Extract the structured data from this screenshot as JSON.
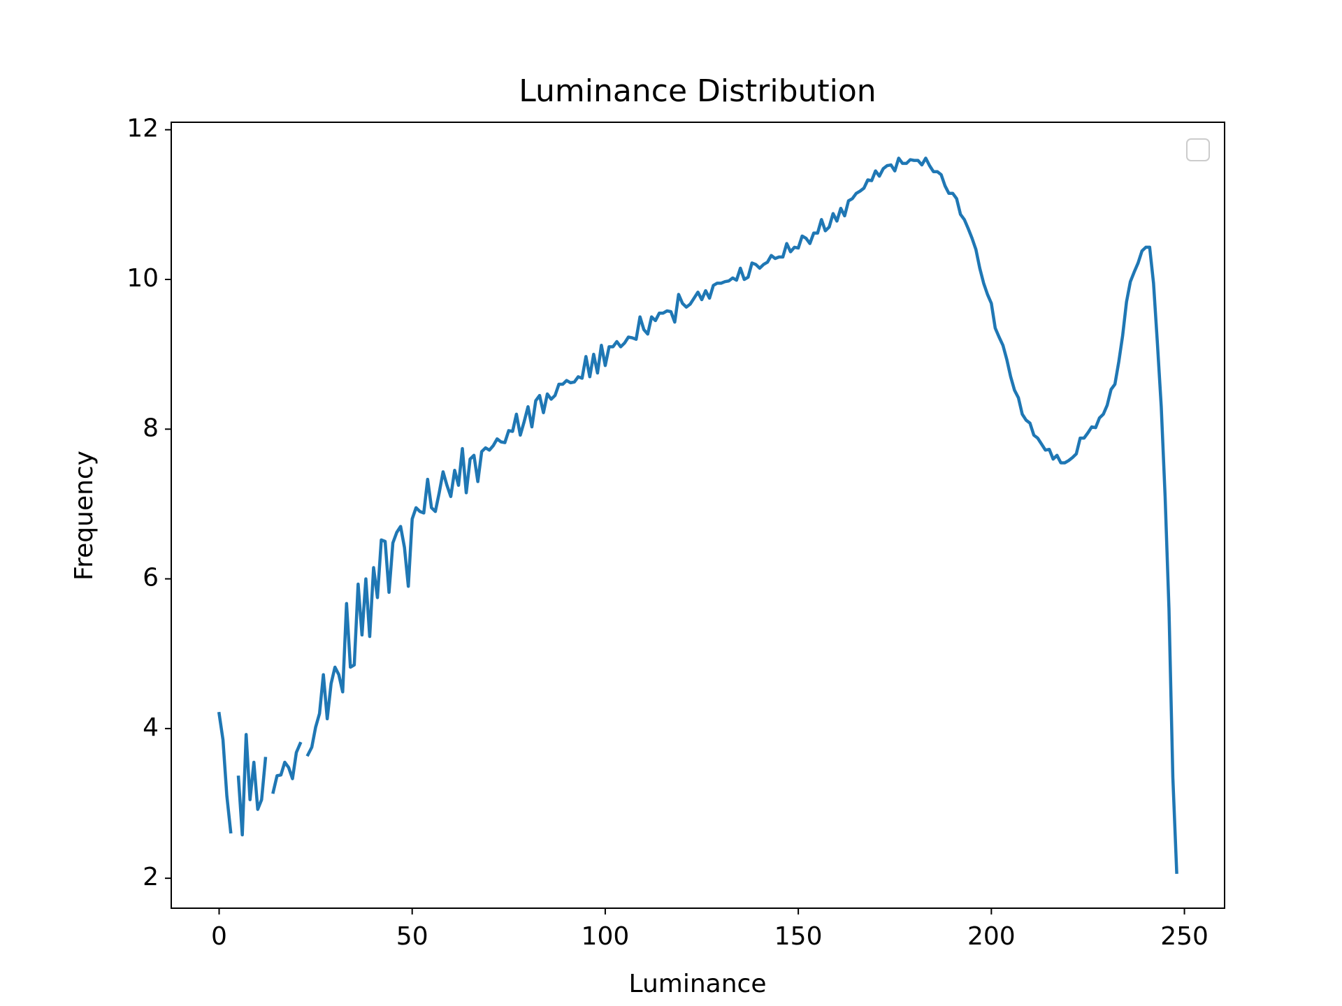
{
  "chart_data": {
    "type": "line",
    "title": "Luminance Distribution",
    "x_label": "Luminance",
    "y_label": "Frequency",
    "x": [
      0,
      1,
      2,
      3,
      4,
      5,
      6,
      7,
      8,
      9,
      10,
      11,
      12,
      13,
      14,
      15,
      16,
      17,
      18,
      19,
      20,
      21,
      22,
      23,
      24,
      25,
      26,
      27,
      28,
      29,
      30,
      31,
      32,
      33,
      34,
      35,
      36,
      37,
      38,
      39,
      40,
      41,
      42,
      43,
      44,
      45,
      46,
      47,
      48,
      49,
      50,
      51,
      52,
      53,
      54,
      55,
      56,
      57,
      58,
      59,
      60,
      61,
      62,
      63,
      64,
      65,
      66,
      67,
      68,
      69,
      70,
      71,
      72,
      73,
      74,
      75,
      76,
      77,
      78,
      79,
      80,
      81,
      82,
      83,
      84,
      85,
      86,
      87,
      88,
      89,
      90,
      91,
      92,
      93,
      94,
      95,
      96,
      97,
      98,
      99,
      100,
      101,
      102,
      103,
      104,
      105,
      106,
      107,
      108,
      109,
      110,
      111,
      112,
      113,
      114,
      115,
      116,
      117,
      118,
      119,
      120,
      121,
      122,
      123,
      124,
      125,
      126,
      127,
      128,
      129,
      130,
      131,
      132,
      133,
      134,
      135,
      136,
      137,
      138,
      139,
      140,
      141,
      142,
      143,
      144,
      145,
      146,
      147,
      148,
      149,
      150,
      151,
      152,
      153,
      154,
      155,
      156,
      157,
      158,
      159,
      160,
      161,
      162,
      163,
      164,
      165,
      166,
      167,
      168,
      169,
      170,
      171,
      172,
      173,
      174,
      175,
      176,
      177,
      178,
      179,
      180,
      181,
      182,
      183,
      184,
      185,
      186,
      187,
      188,
      189,
      190,
      191,
      192,
      193,
      194,
      195,
      196,
      197,
      198,
      199,
      200,
      201,
      202,
      203,
      204,
      205,
      206,
      207,
      208,
      209,
      210,
      211,
      212,
      213,
      214,
      215,
      216,
      217,
      218,
      219,
      220,
      221,
      222,
      223,
      224,
      225,
      226,
      227,
      228,
      229,
      230,
      231,
      232,
      233,
      234,
      235,
      236,
      237,
      238,
      239,
      240,
      241,
      242,
      243,
      244,
      245,
      246,
      247,
      248
    ],
    "values": [
      4.2,
      3.85,
      3.1,
      2.62,
      null,
      3.35,
      2.58,
      3.92,
      3.05,
      3.55,
      2.92,
      3.05,
      3.6,
      null,
      3.15,
      3.37,
      3.38,
      3.55,
      3.48,
      3.33,
      3.68,
      3.8,
      null,
      3.65,
      3.75,
      4.02,
      4.2,
      4.72,
      4.13,
      4.6,
      4.82,
      4.72,
      4.49,
      5.67,
      4.82,
      4.85,
      5.93,
      5.25,
      6.0,
      5.23,
      6.15,
      5.75,
      6.52,
      6.5,
      5.82,
      6.48,
      6.62,
      6.7,
      6.42,
      5.9,
      6.8,
      6.95,
      6.9,
      6.88,
      7.33,
      6.95,
      6.9,
      7.15,
      7.43,
      7.25,
      7.1,
      7.45,
      7.25,
      7.74,
      7.15,
      7.6,
      7.65,
      7.3,
      7.7,
      7.75,
      7.72,
      7.78,
      7.87,
      7.83,
      7.82,
      7.98,
      7.97,
      8.2,
      7.92,
      8.1,
      8.3,
      8.03,
      8.38,
      8.45,
      8.22,
      8.47,
      8.4,
      8.45,
      8.6,
      8.6,
      8.65,
      8.62,
      8.63,
      8.7,
      8.68,
      8.97,
      8.7,
      9.0,
      8.75,
      9.12,
      8.85,
      9.1,
      9.1,
      9.17,
      9.1,
      9.15,
      9.23,
      9.22,
      9.2,
      9.5,
      9.33,
      9.27,
      9.5,
      9.45,
      9.55,
      9.55,
      9.58,
      9.57,
      9.43,
      9.8,
      9.68,
      9.63,
      9.67,
      9.75,
      9.83,
      9.73,
      9.85,
      9.75,
      9.92,
      9.95,
      9.95,
      9.97,
      9.98,
      10.02,
      9.99,
      10.15,
      10.0,
      10.03,
      10.22,
      10.2,
      10.15,
      10.2,
      10.23,
      10.32,
      10.28,
      10.3,
      10.3,
      10.48,
      10.37,
      10.43,
      10.42,
      10.58,
      10.55,
      10.48,
      10.62,
      10.62,
      10.8,
      10.65,
      10.7,
      10.88,
      10.78,
      10.95,
      10.85,
      11.05,
      11.08,
      11.15,
      11.18,
      11.22,
      11.33,
      11.32,
      11.45,
      11.38,
      11.48,
      11.52,
      11.53,
      11.45,
      11.62,
      11.55,
      11.55,
      11.6,
      11.59,
      11.59,
      11.53,
      11.62,
      11.52,
      11.44,
      11.44,
      11.4,
      11.25,
      11.15,
      11.15,
      11.08,
      10.87,
      10.8,
      10.68,
      10.55,
      10.4,
      10.15,
      9.95,
      9.8,
      9.68,
      9.35,
      9.23,
      9.12,
      8.93,
      8.7,
      8.52,
      8.42,
      8.2,
      8.12,
      8.08,
      7.92,
      7.88,
      7.8,
      7.72,
      7.73,
      7.6,
      7.65,
      7.55,
      7.55,
      7.58,
      7.62,
      7.67,
      7.88,
      7.88,
      7.95,
      8.03,
      8.02,
      8.15,
      8.2,
      8.32,
      8.53,
      8.6,
      8.9,
      9.25,
      9.7,
      9.97,
      10.1,
      10.22,
      10.38,
      10.43,
      10.43,
      9.95,
      9.15,
      8.3,
      7.1,
      5.6,
      3.35,
      2.08
    ],
    "color": "#1f77b4",
    "xlim": [
      -12.4,
      260.4
    ],
    "ylim": [
      1.6,
      12.1
    ],
    "xticks": [
      0,
      50,
      100,
      150,
      200,
      250
    ],
    "yticks": [
      2,
      4,
      6,
      8,
      10,
      12
    ]
  }
}
